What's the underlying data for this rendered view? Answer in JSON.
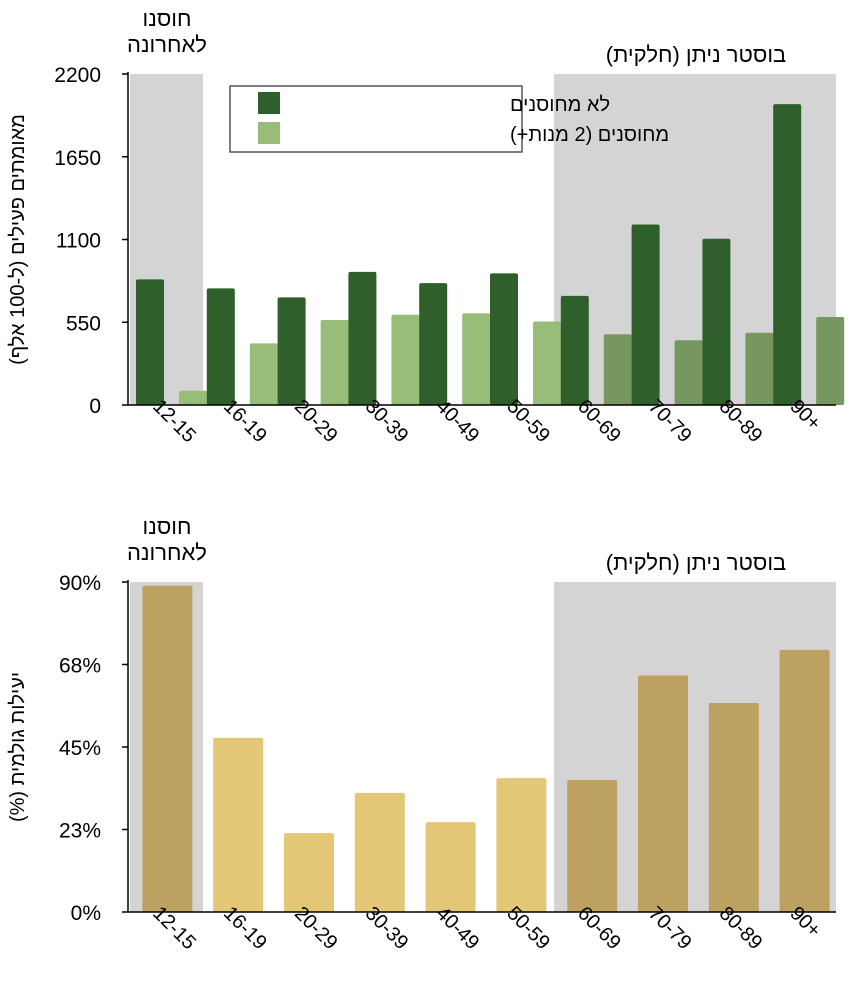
{
  "chart_data": [
    {
      "type": "bar",
      "ylabel": "מאומתים פעילים (ל-100 אלף)",
      "ylim": [
        0,
        2200
      ],
      "yticks": [
        "0",
        "550",
        "1100",
        "1650",
        "2200"
      ],
      "ytick_values": [
        0,
        550,
        1100,
        1650,
        2200
      ],
      "categories": [
        "12-15",
        "16-19",
        "20-29",
        "30-39",
        "40-49",
        "50-59",
        "60-69",
        "70-79",
        "80-89",
        "90+"
      ],
      "series": [
        {
          "name": "לא מחוסנים",
          "values": [
            835,
            775,
            715,
            885,
            810,
            875,
            725,
            1200,
            1105,
            2000
          ]
        },
        {
          "name": "מחוסנים (2 מנות+)",
          "values": [
            95,
            410,
            565,
            600,
            610,
            555,
            470,
            430,
            480,
            585
          ]
        }
      ],
      "colors": {
        "unvacc": "#2f5f2b",
        "vacc": "#98bd78",
        "vacc_shaded": "#76975e",
        "shade": "#d4d4d4"
      },
      "legend_position": "top-center",
      "annotations": {
        "left": "חוסנו\nלאחרונה",
        "right": "בוסטר ניתן (חלקית)"
      },
      "shaded_groups": {
        "left": [
          "12-15"
        ],
        "right": [
          "60-69",
          "70-79",
          "80-89",
          "90+"
        ]
      }
    },
    {
      "type": "bar",
      "ylabel": "יעילות גולמית (%)",
      "ylim": [
        0,
        90
      ],
      "yticks": [
        "0%",
        "23%",
        "45%",
        "68%",
        "90%"
      ],
      "ytick_values": [
        0,
        22.5,
        45,
        67.5,
        90
      ],
      "categories": [
        "12-15",
        "16-19",
        "20-29",
        "30-39",
        "40-49",
        "50-59",
        "60-69",
        "70-79",
        "80-89",
        "90+"
      ],
      "series": [
        {
          "values": [
            89,
            47.5,
            21.5,
            32.5,
            24.5,
            36.5,
            36,
            64.5,
            57,
            71.5
          ]
        }
      ],
      "colors": {
        "bar": "#e3c776",
        "bar_shaded": "#bca160",
        "shade": "#d4d4d4"
      },
      "annotations": {
        "left": "חוסנו\nלאחרונה",
        "right": "בוסטר ניתן (חלקית)"
      },
      "shaded_groups": {
        "left": [
          "12-15"
        ],
        "right": [
          "60-69",
          "70-79",
          "80-89",
          "90+"
        ]
      }
    }
  ]
}
